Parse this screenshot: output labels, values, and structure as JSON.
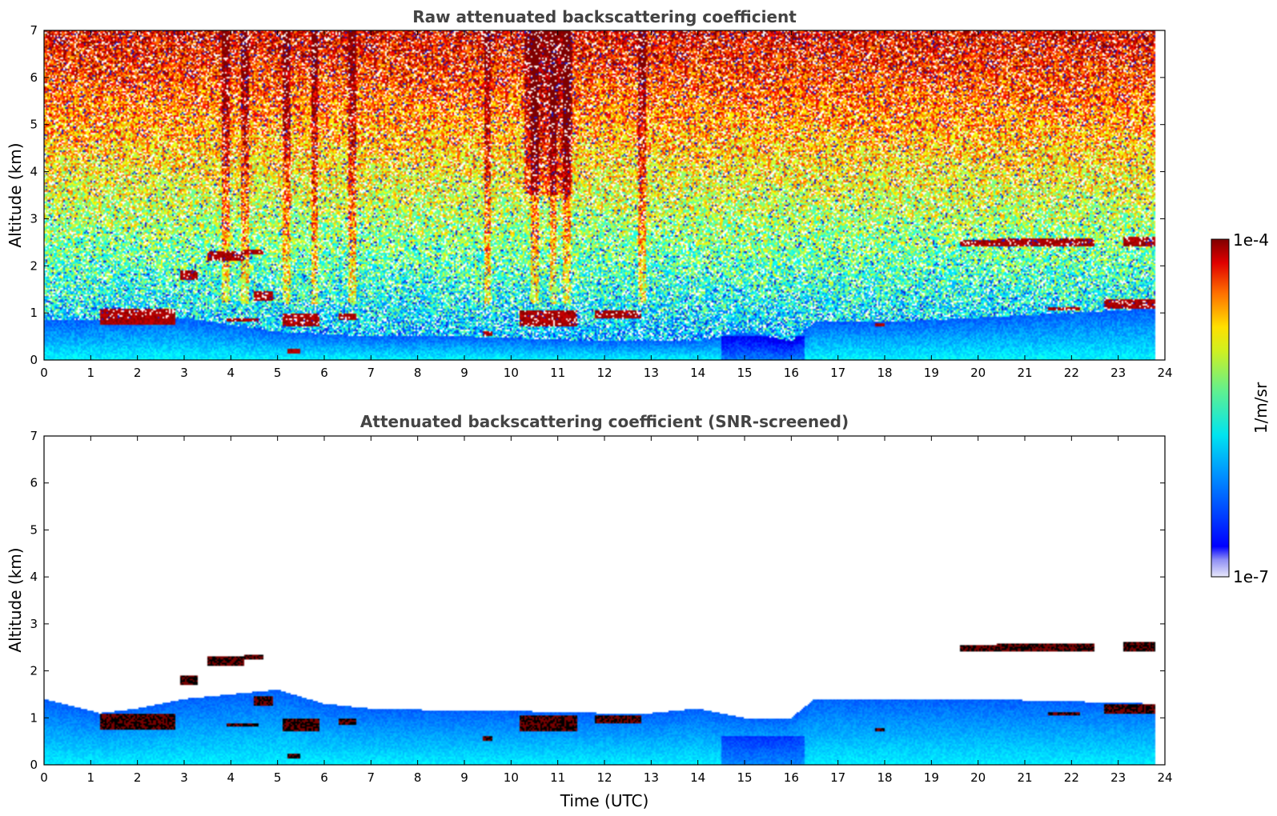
{
  "chart_data": [
    {
      "type": "heatmap",
      "title": "Raw attenuated backscattering coefficient",
      "xlabel": "",
      "ylabel": "Altitude (km)",
      "xlim": [
        0,
        24
      ],
      "ylim": [
        0,
        7
      ],
      "xticks": [
        0,
        1,
        2,
        3,
        4,
        5,
        6,
        7,
        8,
        9,
        10,
        11,
        12,
        13,
        14,
        15,
        16,
        17,
        18,
        19,
        20,
        21,
        22,
        23,
        24
      ],
      "yticks": [
        0,
        1,
        2,
        3,
        4,
        5,
        6,
        7
      ],
      "data_end_time": 23.8,
      "screened": false,
      "boundary_layer_top_km": [
        [
          0,
          0.85
        ],
        [
          1,
          0.85
        ],
        [
          3,
          0.9
        ],
        [
          5,
          0.6
        ],
        [
          7,
          0.5
        ],
        [
          9,
          0.5
        ],
        [
          12,
          0.4
        ],
        [
          14,
          0.4
        ],
        [
          15,
          0.6
        ],
        [
          16,
          0.4
        ],
        [
          16.5,
          0.8
        ],
        [
          18,
          0.8
        ],
        [
          20,
          0.9
        ],
        [
          22,
          1.0
        ],
        [
          23.8,
          1.1
        ]
      ],
      "cloud_layers": [
        {
          "t0": 1.2,
          "t1": 2.8,
          "z0": 0.75,
          "z1": 1.1,
          "intensity": "high"
        },
        {
          "t0": 2.9,
          "t1": 3.3,
          "z0": 1.7,
          "z1": 1.9,
          "intensity": "high"
        },
        {
          "t0": 3.5,
          "t1": 4.3,
          "z0": 2.1,
          "z1": 2.3,
          "intensity": "high"
        },
        {
          "t0": 4.3,
          "t1": 4.7,
          "z0": 2.25,
          "z1": 2.35,
          "intensity": "high"
        },
        {
          "t0": 3.9,
          "t1": 4.6,
          "z0": 0.8,
          "z1": 0.9,
          "intensity": "high"
        },
        {
          "t0": 4.5,
          "t1": 4.9,
          "z0": 1.25,
          "z1": 1.45,
          "intensity": "high"
        },
        {
          "t0": 5.1,
          "t1": 5.9,
          "z0": 0.7,
          "z1": 1.0,
          "intensity": "high"
        },
        {
          "t0": 5.2,
          "t1": 5.5,
          "z0": 0.15,
          "z1": 0.25,
          "intensity": "high"
        },
        {
          "t0": 6.3,
          "t1": 6.7,
          "z0": 0.85,
          "z1": 1.0,
          "intensity": "high"
        },
        {
          "t0": 9.4,
          "t1": 9.6,
          "z0": 0.5,
          "z1": 0.6,
          "intensity": "high"
        },
        {
          "t0": 10.2,
          "t1": 11.4,
          "z0": 0.7,
          "z1": 1.05,
          "intensity": "high"
        },
        {
          "t0": 11.8,
          "t1": 12.8,
          "z0": 0.9,
          "z1": 1.05,
          "intensity": "high"
        },
        {
          "t0": 17.8,
          "t1": 18.0,
          "z0": 0.7,
          "z1": 0.78,
          "intensity": "high"
        },
        {
          "t0": 19.6,
          "t1": 20.4,
          "z0": 2.4,
          "z1": 2.55,
          "intensity": "high"
        },
        {
          "t0": 20.4,
          "t1": 22.5,
          "z0": 2.42,
          "z1": 2.58,
          "intensity": "high"
        },
        {
          "t0": 23.1,
          "t1": 23.8,
          "z0": 2.4,
          "z1": 2.6,
          "intensity": "high"
        },
        {
          "t0": 21.5,
          "t1": 22.2,
          "z0": 1.05,
          "z1": 1.12,
          "intensity": "high"
        },
        {
          "t0": 22.7,
          "t1": 23.8,
          "z0": 1.1,
          "z1": 1.3,
          "intensity": "high"
        }
      ],
      "noisy_columns": [
        3.9,
        4.3,
        5.2,
        5.8,
        6.6,
        9.5,
        10.5,
        10.9,
        11.2,
        12.8
      ]
    },
    {
      "type": "heatmap",
      "title": "Attenuated backscattering coefficient (SNR-screened)",
      "xlabel": "Time (UTC)",
      "ylabel": "Altitude (km)",
      "xlim": [
        0,
        24
      ],
      "ylim": [
        0,
        7
      ],
      "xticks": [
        0,
        1,
        2,
        3,
        4,
        5,
        6,
        7,
        8,
        9,
        10,
        11,
        12,
        13,
        14,
        15,
        16,
        17,
        18,
        19,
        20,
        21,
        22,
        23,
        24
      ],
      "yticks": [
        0,
        1,
        2,
        3,
        4,
        5,
        6,
        7
      ],
      "data_end_time": 23.8,
      "screened": true,
      "screened_top_km": [
        [
          0,
          1.4
        ],
        [
          1.2,
          1.1
        ],
        [
          2,
          1.2
        ],
        [
          3,
          1.4
        ],
        [
          4,
          1.5
        ],
        [
          5,
          1.6
        ],
        [
          6,
          1.3
        ],
        [
          7,
          1.2
        ],
        [
          9,
          1.15
        ],
        [
          10,
          1.15
        ],
        [
          12,
          1.1
        ],
        [
          13,
          1.1
        ],
        [
          14,
          1.2
        ],
        [
          15,
          1.0
        ],
        [
          16,
          1.0
        ],
        [
          16.5,
          1.4
        ],
        [
          18,
          1.4
        ],
        [
          20,
          1.4
        ],
        [
          22,
          1.35
        ],
        [
          23.8,
          1.3
        ]
      ]
    }
  ],
  "colorbar": {
    "max_label": "1e-4",
    "min_label": "1e-7",
    "units_label": "1/m/sr",
    "colormap": "jet",
    "scale": "log",
    "range": [
      1e-07,
      0.0001
    ]
  }
}
